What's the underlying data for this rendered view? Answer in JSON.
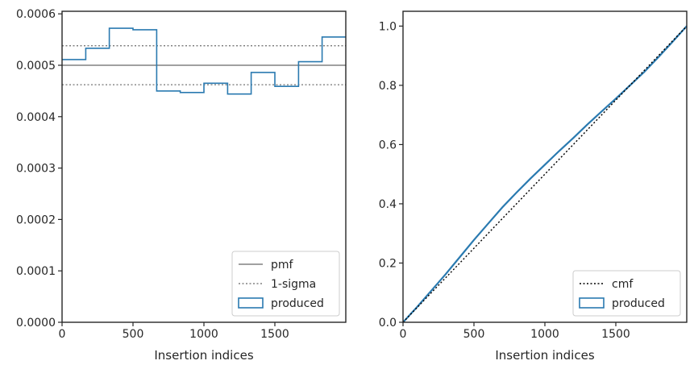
{
  "colors": {
    "hist": "#2a7ab0",
    "pmf": "#808080",
    "sigma": "#808080",
    "cmf": "#000000",
    "axis": "#262626"
  },
  "chart_data": [
    {
      "type": "histogram",
      "xlabel": "Insertion indices",
      "ylabel": "",
      "xlim": [
        0,
        2000
      ],
      "ylim": [
        0,
        0.000605
      ],
      "xticks": [
        0,
        500,
        1000,
        1500
      ],
      "xtick_labels": [
        "0",
        "500",
        "1000",
        "1500"
      ],
      "yticks": [
        0,
        0.0001,
        0.0002,
        0.0003,
        0.0004,
        0.0005,
        0.0006
      ],
      "ytick_labels": [
        "0.0000",
        "0.0001",
        "0.0002",
        "0.0003",
        "0.0004",
        "0.0005",
        "0.0006"
      ],
      "pmf": 0.0005,
      "sigma": [
        0.000462,
        0.000538
      ],
      "bin_edges": [
        0,
        167,
        333,
        500,
        667,
        833,
        1000,
        1167,
        1333,
        1500,
        1667,
        1833,
        2000
      ],
      "values": [
        0.000511,
        0.000533,
        0.000572,
        0.000569,
        0.00045,
        0.000447,
        0.000465,
        0.000444,
        0.000486,
        0.000459,
        0.000507,
        0.000555
      ],
      "legend_position": "lower right",
      "legend": [
        {
          "key": "pmf",
          "label": "pmf",
          "style": "solid-line"
        },
        {
          "key": "sigma",
          "label": "1-sigma",
          "style": "dotted-line"
        },
        {
          "key": "hist",
          "label": "produced",
          "style": "box"
        }
      ]
    },
    {
      "type": "line",
      "xlabel": "Insertion indices",
      "ylabel": "",
      "xlim": [
        0,
        2000
      ],
      "ylim": [
        0,
        1.05
      ],
      "xticks": [
        0,
        500,
        1000,
        1500
      ],
      "xtick_labels": [
        "0",
        "500",
        "1000",
        "1500"
      ],
      "yticks": [
        0,
        0.2,
        0.4,
        0.6,
        0.8,
        1.0
      ],
      "ytick_labels": [
        "0.0",
        "0.2",
        "0.4",
        "0.6",
        "0.8",
        "1.0"
      ],
      "cmf": {
        "x": [
          0,
          2000
        ],
        "y": [
          0,
          1.0
        ]
      },
      "produced": {
        "x": [
          0,
          100,
          200,
          300,
          400,
          500,
          600,
          700,
          800,
          900,
          1000,
          1100,
          1200,
          1300,
          1400,
          1500,
          1600,
          1700,
          1800,
          1900,
          2000
        ],
        "y": [
          0,
          0.052,
          0.107,
          0.162,
          0.22,
          0.278,
          0.333,
          0.388,
          0.438,
          0.486,
          0.532,
          0.578,
          0.622,
          0.668,
          0.712,
          0.755,
          0.8,
          0.845,
          0.895,
          0.947,
          1.0
        ]
      },
      "legend_position": "lower right",
      "legend": [
        {
          "key": "cmf",
          "label": "cmf",
          "style": "dotted-line"
        },
        {
          "key": "hist",
          "label": "produced",
          "style": "box"
        }
      ]
    }
  ]
}
